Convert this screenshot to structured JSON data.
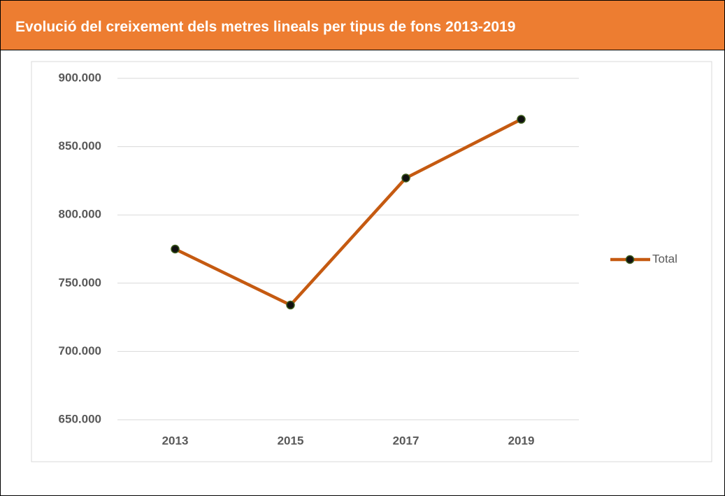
{
  "chart_data": {
    "type": "line",
    "title": "Evolució del creixement dels metres lineals per tipus de fons 2013-2019",
    "categories": [
      "2013",
      "2015",
      "2017",
      "2019"
    ],
    "series": [
      {
        "name": "Total",
        "color": "#c55a11",
        "values": [
          775000,
          734000,
          827000,
          870000
        ]
      }
    ],
    "ylim": [
      650000,
      900000
    ],
    "yticks": [
      {
        "value": 650000,
        "label": "650.000"
      },
      {
        "value": 700000,
        "label": "700.000"
      },
      {
        "value": 750000,
        "label": "750.000"
      },
      {
        "value": 800000,
        "label": "800.000"
      },
      {
        "value": 850000,
        "label": "850.000"
      },
      {
        "value": 900000,
        "label": "900.000"
      }
    ],
    "grid": true,
    "legend": "right"
  }
}
